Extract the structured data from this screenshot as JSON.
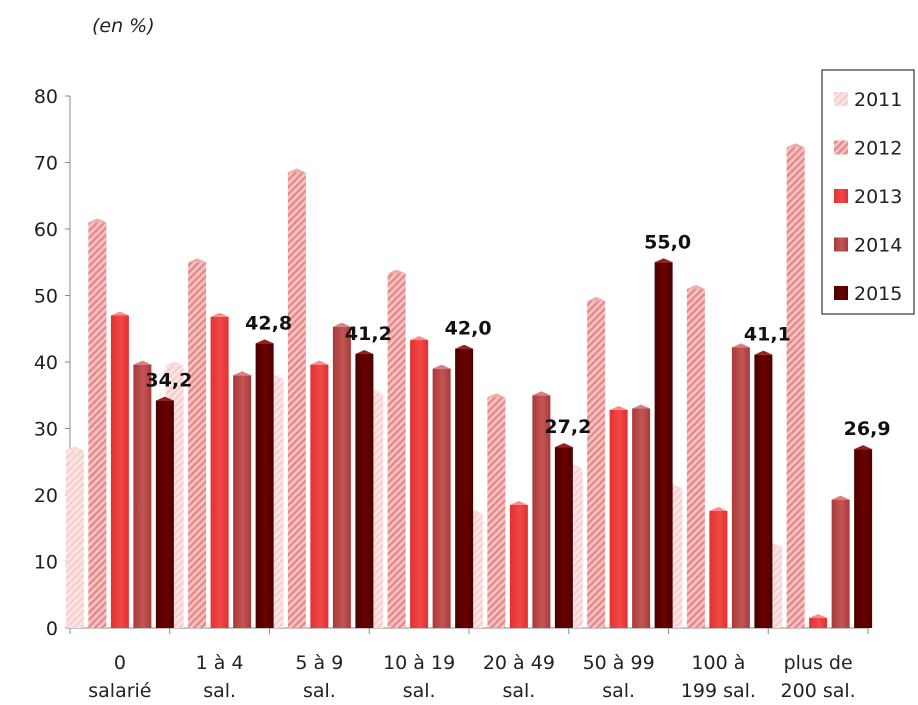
{
  "unit_label": "(en %)",
  "colors": {
    "2011": "#f6cccc",
    "2012": "#e78585",
    "2013": "#f24848",
    "2014": "#c45555",
    "2015": "#6b0000"
  },
  "chart_data": {
    "type": "bar",
    "ylim": [
      0,
      80
    ],
    "yticks": [
      "0",
      "10",
      "20",
      "30",
      "40",
      "50",
      "60",
      "70",
      "80"
    ],
    "categories": [
      [
        "0",
        "salarié"
      ],
      [
        "1 à 4",
        "sal."
      ],
      [
        "5 à 9",
        "sal."
      ],
      [
        "10 à 19",
        "sal."
      ],
      [
        "20 à 49",
        "sal."
      ],
      [
        "50 à 99",
        "sal."
      ],
      [
        "100 à",
        "199 sal."
      ],
      [
        "plus de",
        "200 sal."
      ]
    ],
    "series": [
      {
        "name": "2011",
        "values": [
          26.7,
          39.5,
          37.5,
          35.2,
          17.2,
          24.0,
          21.0,
          12.2
        ]
      },
      {
        "name": "2012",
        "values": [
          61.0,
          55.0,
          68.5,
          53.3,
          34.7,
          49.2,
          51.0,
          72.3
        ]
      },
      {
        "name": "2013",
        "values": [
          47.0,
          46.8,
          39.6,
          43.3,
          18.5,
          32.8,
          17.6,
          1.5
        ]
      },
      {
        "name": "2014",
        "values": [
          39.6,
          38.0,
          45.3,
          39.0,
          35.0,
          33.0,
          42.2,
          19.3
        ]
      },
      {
        "name": "2015",
        "values": [
          34.2,
          42.8,
          41.2,
          42.0,
          27.2,
          55.0,
          41.1,
          26.9
        ]
      }
    ],
    "data_labels": [
      "34,2",
      "42,8",
      "41,2",
      "42,0",
      "27,2",
      "55,0",
      "41,1",
      "26,9"
    ],
    "legend": [
      "2011",
      "2012",
      "2013",
      "2014",
      "2015"
    ],
    "legend_position": "top-right",
    "grid": false
  }
}
